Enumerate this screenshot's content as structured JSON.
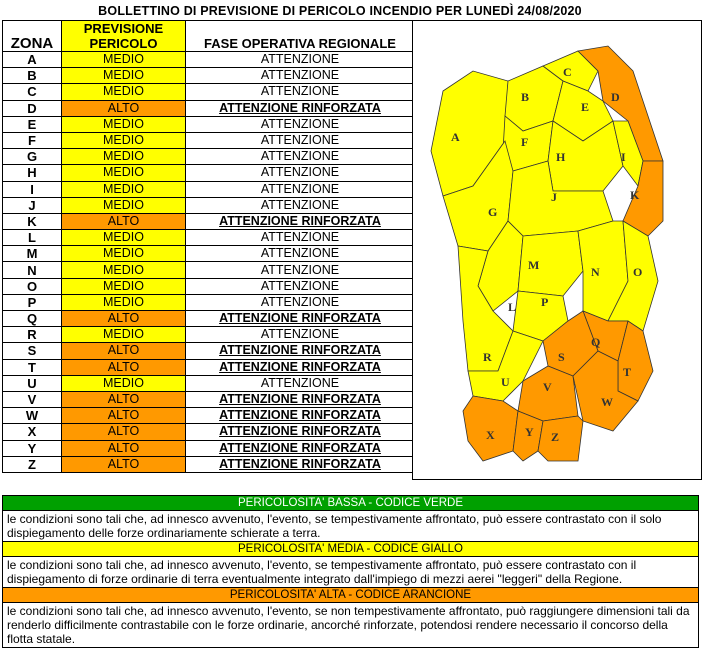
{
  "title": "BOLLETTINO DI PREVISIONE DI PERICOLO INCENDIO PER LUNEDÌ 24/08/2020",
  "table": {
    "headers": {
      "zona": "ZONA",
      "previsione": "PREVISIONE PERICOLO",
      "fase": "FASE OPERATIVA REGIONALE"
    },
    "rows": [
      {
        "zona": "A",
        "previsione": "MEDIO",
        "fase": "ATTENZIONE"
      },
      {
        "zona": "B",
        "previsione": "MEDIO",
        "fase": "ATTENZIONE"
      },
      {
        "zona": "C",
        "previsione": "MEDIO",
        "fase": "ATTENZIONE"
      },
      {
        "zona": "D",
        "previsione": "ALTO",
        "fase": "ATTENZIONE RINFORZATA"
      },
      {
        "zona": "E",
        "previsione": "MEDIO",
        "fase": "ATTENZIONE"
      },
      {
        "zona": "F",
        "previsione": "MEDIO",
        "fase": "ATTENZIONE"
      },
      {
        "zona": "G",
        "previsione": "MEDIO",
        "fase": "ATTENZIONE"
      },
      {
        "zona": "H",
        "previsione": "MEDIO",
        "fase": "ATTENZIONE"
      },
      {
        "zona": "I",
        "previsione": "MEDIO",
        "fase": "ATTENZIONE"
      },
      {
        "zona": "J",
        "previsione": "MEDIO",
        "fase": "ATTENZIONE"
      },
      {
        "zona": "K",
        "previsione": "ALTO",
        "fase": "ATTENZIONE RINFORZATA"
      },
      {
        "zona": "L",
        "previsione": "MEDIO",
        "fase": "ATTENZIONE"
      },
      {
        "zona": "M",
        "previsione": "MEDIO",
        "fase": "ATTENZIONE"
      },
      {
        "zona": "N",
        "previsione": "MEDIO",
        "fase": "ATTENZIONE"
      },
      {
        "zona": "O",
        "previsione": "MEDIO",
        "fase": "ATTENZIONE"
      },
      {
        "zona": "P",
        "previsione": "MEDIO",
        "fase": "ATTENZIONE"
      },
      {
        "zona": "Q",
        "previsione": "ALTO",
        "fase": "ATTENZIONE RINFORZATA"
      },
      {
        "zona": "R",
        "previsione": "MEDIO",
        "fase": "ATTENZIONE"
      },
      {
        "zona": "S",
        "previsione": "ALTO",
        "fase": "ATTENZIONE RINFORZATA"
      },
      {
        "zona": "T",
        "previsione": "ALTO",
        "fase": "ATTENZIONE RINFORZATA"
      },
      {
        "zona": "U",
        "previsione": "MEDIO",
        "fase": "ATTENZIONE"
      },
      {
        "zona": "V",
        "previsione": "ALTO",
        "fase": "ATTENZIONE RINFORZATA"
      },
      {
        "zona": "W",
        "previsione": "ALTO",
        "fase": "ATTENZIONE RINFORZATA"
      },
      {
        "zona": "X",
        "previsione": "ALTO",
        "fase": "ATTENZIONE RINFORZATA"
      },
      {
        "zona": "Y",
        "previsione": "ALTO",
        "fase": "ATTENZIONE RINFORZATA"
      },
      {
        "zona": "Z",
        "previsione": "ALTO",
        "fase": "ATTENZIONE RINFORZATA"
      }
    ]
  },
  "colors": {
    "medio": "#ffff00",
    "alto": "#ff9900",
    "basso": "#00a000"
  },
  "map": {
    "zones": [
      "A",
      "B",
      "C",
      "D",
      "E",
      "F",
      "G",
      "H",
      "I",
      "J",
      "K",
      "L",
      "M",
      "N",
      "O",
      "P",
      "Q",
      "R",
      "S",
      "T",
      "U",
      "V",
      "W",
      "X",
      "Y",
      "Z"
    ]
  },
  "legend": {
    "green": {
      "title": "PERICOLOSITA' BASSA - CODICE VERDE",
      "text": "le condizioni sono tali che, ad innesco avvenuto, l'evento, se tempestivamente affrontato, può essere contrastato con il solo dispiegamento delle forze ordinariamente schierate a terra."
    },
    "yellow": {
      "title": "PERICOLOSITA' MEDIA - CODICE GIALLO",
      "text": "le condizioni sono tali che, ad innesco avvenuto, l'evento, se tempestivamente affrontato, può essere contrastato con il dispiegamento di forze ordinarie di terra eventualmente integrato dall'impiego di mezzi aerei \"leggeri\" della Regione."
    },
    "orange": {
      "title": "PERICOLOSITA' ALTA - CODICE ARANCIONE",
      "text": "le condizioni sono tali che, ad innesco avvenuto, l'evento, se non tempestivamente affrontato, può raggiungere dimensioni tali da renderlo difficilmente contrastabile con le forze ordinarie, ancorché rinforzate, potendosi rendere necessario il concorso della flotta statale."
    }
  }
}
